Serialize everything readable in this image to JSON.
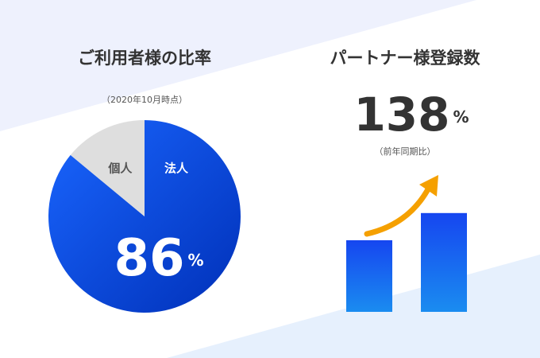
{
  "chart_data": [
    {
      "type": "pie",
      "title": "ご利用者様の比率",
      "subtitle": "（2020年10月時点）",
      "categories": [
        "法人",
        "個人"
      ],
      "values": [
        86,
        14
      ],
      "value_labels": [
        "86%",
        null
      ],
      "colors": [
        "#0a44e6",
        "#dedede"
      ]
    },
    {
      "type": "bar",
      "title": "パートナー様登録数",
      "annotation": "138%",
      "subtitle": "（前年同期比）",
      "categories": [
        null,
        null
      ],
      "values": [
        100,
        138
      ],
      "color": "#1a5cf5"
    }
  ]
}
